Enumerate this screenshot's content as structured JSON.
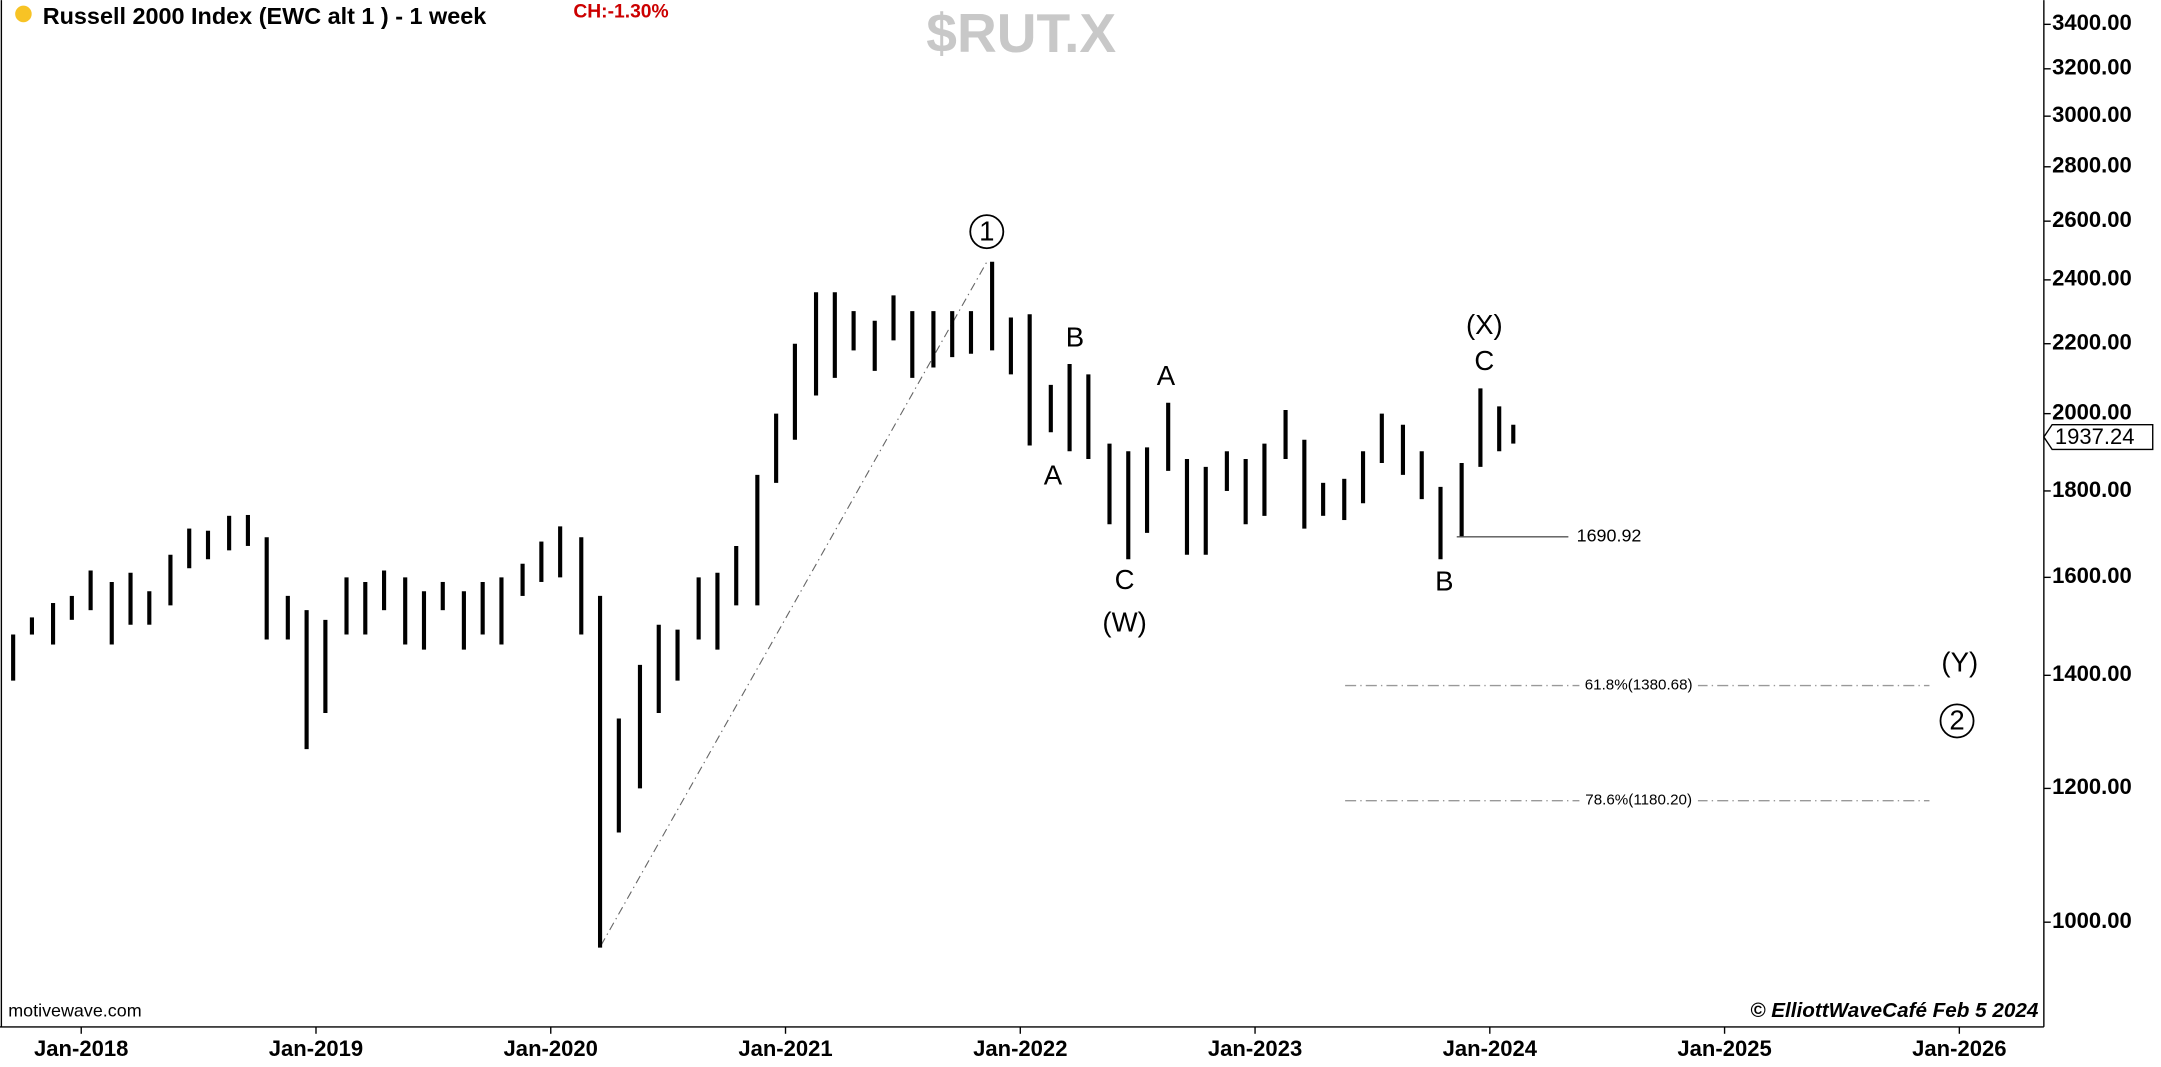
{
  "chart_data": {
    "type": "ohlc",
    "title": "Russell 2000 Index (EWC alt 1 ) - 1 week",
    "change_label": "CH:-1.30%",
    "symbol": "$RUT.X",
    "source": "motivewave.com",
    "copyright": "© ElliottWaveCafé Feb 5 2024",
    "color": "#000000",
    "log_scale": true,
    "xlim": [
      2017.654,
      2026.36
    ],
    "ylim": [
      867,
      3514
    ],
    "xticks": [
      {
        "value": 2018,
        "label": "Jan-2018"
      },
      {
        "value": 2019,
        "label": "Jan-2019"
      },
      {
        "value": 2020,
        "label": "Jan-2020"
      },
      {
        "value": 2021,
        "label": "Jan-2021"
      },
      {
        "value": 2022,
        "label": "Jan-2022"
      },
      {
        "value": 2023,
        "label": "Jan-2023"
      },
      {
        "value": 2024,
        "label": "Jan-2024"
      },
      {
        "value": 2025,
        "label": "Jan-2025"
      },
      {
        "value": 2026,
        "label": "Jan-2026"
      }
    ],
    "yticks": [
      {
        "value": 1000,
        "label": "1000.00"
      },
      {
        "value": 1200,
        "label": "1200.00"
      },
      {
        "value": 1400,
        "label": "1400.00"
      },
      {
        "value": 1600,
        "label": "1600.00"
      },
      {
        "value": 1800,
        "label": "1800.00"
      },
      {
        "value": 2000,
        "label": "2000.00"
      },
      {
        "value": 2200,
        "label": "2200.00"
      },
      {
        "value": 2400,
        "label": "2400.00"
      },
      {
        "value": 2600,
        "label": "2600.00"
      },
      {
        "value": 2800,
        "label": "2800.00"
      },
      {
        "value": 3000,
        "label": "3000.00"
      },
      {
        "value": 3200,
        "label": "3200.00"
      },
      {
        "value": 3400,
        "label": "3400.00"
      }
    ],
    "x": [
      2017.71,
      2017.79,
      2017.88,
      2017.96,
      2018.04,
      2018.13,
      2018.21,
      2018.29,
      2018.38,
      2018.46,
      2018.54,
      2018.63,
      2018.71,
      2018.79,
      2018.88,
      2018.96,
      2019.04,
      2019.13,
      2019.21,
      2019.29,
      2019.38,
      2019.46,
      2019.54,
      2019.63,
      2019.71,
      2019.79,
      2019.88,
      2019.96,
      2020.04,
      2020.13,
      2020.21,
      2020.29,
      2020.38,
      2020.46,
      2020.54,
      2020.63,
      2020.71,
      2020.79,
      2020.88,
      2020.96,
      2021.04,
      2021.13,
      2021.21,
      2021.29,
      2021.38,
      2021.46,
      2021.54,
      2021.63,
      2021.71,
      2021.79,
      2021.88,
      2021.96,
      2022.04,
      2022.13,
      2022.21,
      2022.29,
      2022.38,
      2022.46,
      2022.54,
      2022.63,
      2022.71,
      2022.79,
      2022.88,
      2022.96,
      2023.04,
      2023.13,
      2023.21,
      2023.29,
      2023.38,
      2023.46,
      2023.54,
      2023.63,
      2023.71,
      2023.79,
      2023.88,
      2023.96,
      2024.04,
      2024.1
    ],
    "high": [
      1480,
      1515,
      1545,
      1560,
      1615,
      1590,
      1610,
      1570,
      1650,
      1710,
      1705,
      1740,
      1742,
      1690,
      1560,
      1530,
      1510,
      1600,
      1590,
      1615,
      1600,
      1570,
      1590,
      1570,
      1590,
      1600,
      1630,
      1680,
      1715,
      1690,
      1560,
      1320,
      1420,
      1500,
      1490,
      1600,
      1610,
      1670,
      1840,
      2000,
      2200,
      2360,
      2360,
      2300,
      2270,
      2350,
      2300,
      2300,
      2300,
      2300,
      2460,
      2280,
      2290,
      2080,
      2140,
      2110,
      1920,
      1900,
      1910,
      2030,
      1880,
      1860,
      1900,
      1880,
      1920,
      2010,
      1930,
      1820,
      1830,
      1900,
      2000,
      1970,
      1900,
      1810,
      1870,
      2070,
      2020,
      1970
    ],
    "low": [
      1390,
      1480,
      1460,
      1510,
      1530,
      1460,
      1500,
      1500,
      1540,
      1620,
      1640,
      1660,
      1670,
      1470,
      1470,
      1266,
      1330,
      1480,
      1480,
      1530,
      1460,
      1450,
      1530,
      1450,
      1480,
      1460,
      1560,
      1590,
      1600,
      1480,
      966,
      1130,
      1200,
      1330,
      1390,
      1470,
      1450,
      1540,
      1540,
      1820,
      1930,
      2050,
      2100,
      2180,
      2120,
      2210,
      2100,
      2130,
      2160,
      2170,
      2180,
      2110,
      1915,
      1950,
      1900,
      1880,
      1720,
      1640,
      1700,
      1850,
      1650,
      1650,
      1800,
      1720,
      1740,
      1880,
      1710,
      1740,
      1730,
      1770,
      1870,
      1840,
      1780,
      1640,
      1690,
      1860,
      1900,
      1920
    ],
    "last_price": 1937.24,
    "level_line": 1690.92,
    "fib_levels": [
      {
        "value": 1380.68,
        "label": "61.8%(1380.68)"
      },
      {
        "value": 1180.2,
        "label": "78.6%(1180.20)"
      }
    ],
    "wave_labels": [
      "1",
      "A",
      "B",
      "C",
      "(W)",
      "A",
      "B",
      "C",
      "(X)",
      "(Y)",
      "2"
    ]
  }
}
